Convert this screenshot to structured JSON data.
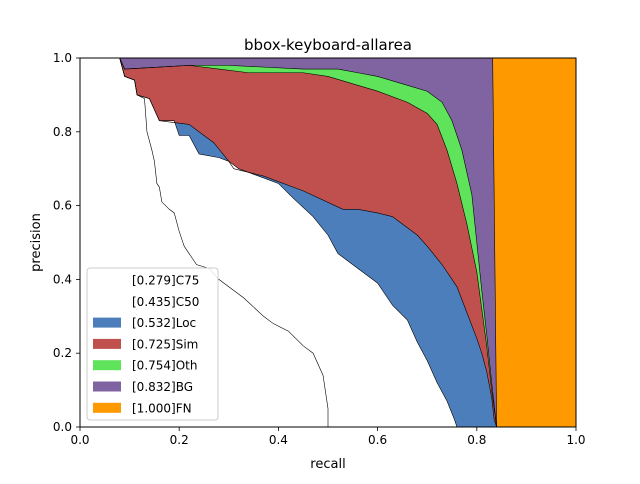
{
  "chart_data": {
    "type": "area",
    "title": "bbox-keyboard-allarea",
    "xlabel": "recall",
    "ylabel": "precision",
    "xlim": [
      0,
      1
    ],
    "ylim": [
      0,
      1
    ],
    "xticks": [
      "0.0",
      "0.2",
      "0.4",
      "0.6",
      "0.8",
      "1.0"
    ],
    "yticks": [
      "0.0",
      "0.2",
      "0.4",
      "0.6",
      "0.8",
      "1.0"
    ],
    "grid": false,
    "legend_position": "lower-left",
    "series": [
      {
        "name": "[0.279]C75",
        "color": "#ffffff",
        "points": [
          [
            0,
            1
          ],
          [
            0.08,
            1
          ],
          [
            0.09,
            0.95
          ],
          [
            0.11,
            0.94
          ],
          [
            0.115,
            0.9
          ],
          [
            0.13,
            0.89
          ],
          [
            0.135,
            0.8
          ],
          [
            0.145,
            0.75
          ],
          [
            0.15,
            0.72
          ],
          [
            0.155,
            0.66
          ],
          [
            0.16,
            0.65
          ],
          [
            0.165,
            0.61
          ],
          [
            0.18,
            0.59
          ],
          [
            0.19,
            0.58
          ],
          [
            0.2,
            0.53
          ],
          [
            0.205,
            0.51
          ],
          [
            0.21,
            0.49
          ],
          [
            0.225,
            0.46
          ],
          [
            0.235,
            0.44
          ],
          [
            0.26,
            0.43
          ],
          [
            0.28,
            0.4
          ],
          [
            0.3,
            0.38
          ],
          [
            0.33,
            0.35
          ],
          [
            0.37,
            0.3
          ],
          [
            0.39,
            0.28
          ],
          [
            0.42,
            0.26
          ],
          [
            0.45,
            0.22
          ],
          [
            0.47,
            0.2
          ],
          [
            0.49,
            0.14
          ],
          [
            0.5,
            0.05
          ],
          [
            0.5,
            0
          ]
        ]
      },
      {
        "name": "[0.435]C50",
        "color": "#ffffff",
        "points": [
          [
            0,
            1
          ],
          [
            0.08,
            1
          ],
          [
            0.09,
            0.95
          ],
          [
            0.11,
            0.94
          ],
          [
            0.115,
            0.9
          ],
          [
            0.14,
            0.89
          ],
          [
            0.16,
            0.83
          ],
          [
            0.19,
            0.83
          ],
          [
            0.2,
            0.79
          ],
          [
            0.22,
            0.79
          ],
          [
            0.24,
            0.74
          ],
          [
            0.28,
            0.73
          ],
          [
            0.3,
            0.72
          ],
          [
            0.32,
            0.7
          ],
          [
            0.36,
            0.68
          ],
          [
            0.4,
            0.66
          ],
          [
            0.43,
            0.62
          ],
          [
            0.47,
            0.57
          ],
          [
            0.5,
            0.52
          ],
          [
            0.52,
            0.47
          ],
          [
            0.56,
            0.43
          ],
          [
            0.58,
            0.41
          ],
          [
            0.6,
            0.39
          ],
          [
            0.63,
            0.33
          ],
          [
            0.66,
            0.29
          ],
          [
            0.68,
            0.23
          ],
          [
            0.7,
            0.18
          ],
          [
            0.72,
            0.12
          ],
          [
            0.74,
            0.07
          ],
          [
            0.755,
            0.02
          ],
          [
            0.76,
            0
          ]
        ]
      },
      {
        "name": "[0.532]Loc",
        "color": "#4c7ebb",
        "points": [
          [
            0,
            1
          ],
          [
            0.08,
            1
          ],
          [
            0.09,
            0.95
          ],
          [
            0.11,
            0.94
          ],
          [
            0.115,
            0.9
          ],
          [
            0.14,
            0.89
          ],
          [
            0.16,
            0.83
          ],
          [
            0.22,
            0.82
          ],
          [
            0.27,
            0.77
          ],
          [
            0.3,
            0.72
          ],
          [
            0.31,
            0.7
          ],
          [
            0.37,
            0.68
          ],
          [
            0.45,
            0.64
          ],
          [
            0.53,
            0.59
          ],
          [
            0.56,
            0.59
          ],
          [
            0.6,
            0.58
          ],
          [
            0.63,
            0.57
          ],
          [
            0.65,
            0.55
          ],
          [
            0.68,
            0.52
          ],
          [
            0.7,
            0.49
          ],
          [
            0.73,
            0.44
          ],
          [
            0.76,
            0.38
          ],
          [
            0.78,
            0.31
          ],
          [
            0.8,
            0.24
          ],
          [
            0.81,
            0.2
          ],
          [
            0.82,
            0.15
          ],
          [
            0.83,
            0.08
          ],
          [
            0.835,
            0.02
          ],
          [
            0.84,
            0
          ]
        ]
      },
      {
        "name": "[0.725]Sim",
        "color": "#c0504d",
        "points": [
          [
            0,
            1
          ],
          [
            0.08,
            1
          ],
          [
            0.09,
            0.97
          ],
          [
            0.22,
            0.98
          ],
          [
            0.28,
            0.97
          ],
          [
            0.34,
            0.96
          ],
          [
            0.38,
            0.96
          ],
          [
            0.45,
            0.96
          ],
          [
            0.5,
            0.95
          ],
          [
            0.55,
            0.93
          ],
          [
            0.6,
            0.91
          ],
          [
            0.66,
            0.88
          ],
          [
            0.7,
            0.85
          ],
          [
            0.72,
            0.82
          ],
          [
            0.74,
            0.75
          ],
          [
            0.76,
            0.66
          ],
          [
            0.78,
            0.55
          ],
          [
            0.8,
            0.42
          ],
          [
            0.81,
            0.32
          ],
          [
            0.82,
            0.22
          ],
          [
            0.83,
            0.1
          ],
          [
            0.84,
            0
          ]
        ]
      },
      {
        "name": "[0.754]Oth",
        "color": "#5ee35a",
        "points": [
          [
            0,
            1
          ],
          [
            0.08,
            1
          ],
          [
            0.09,
            0.97
          ],
          [
            0.22,
            0.98
          ],
          [
            0.3,
            0.98
          ],
          [
            0.45,
            0.97
          ],
          [
            0.52,
            0.97
          ],
          [
            0.56,
            0.96
          ],
          [
            0.6,
            0.95
          ],
          [
            0.65,
            0.93
          ],
          [
            0.7,
            0.91
          ],
          [
            0.73,
            0.88
          ],
          [
            0.75,
            0.83
          ],
          [
            0.77,
            0.75
          ],
          [
            0.79,
            0.63
          ],
          [
            0.8,
            0.5
          ],
          [
            0.81,
            0.37
          ],
          [
            0.82,
            0.25
          ],
          [
            0.83,
            0.12
          ],
          [
            0.84,
            0
          ]
        ]
      },
      {
        "name": "[0.832]BG",
        "color": "#8064a2",
        "points": [
          [
            0,
            1
          ],
          [
            0.832,
            1
          ],
          [
            0.84,
            0
          ]
        ]
      },
      {
        "name": "[1.000]FN",
        "color": "#ff9900",
        "points": [
          [
            0,
            1
          ],
          [
            1,
            1
          ],
          [
            1,
            0
          ]
        ]
      }
    ]
  }
}
